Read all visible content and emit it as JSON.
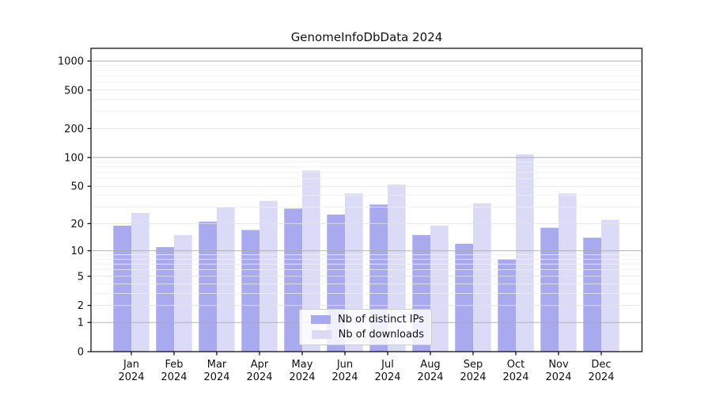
{
  "chart_data": {
    "type": "bar",
    "title": "GenomeInfoDbData 2024",
    "categories": [
      "Jan",
      "Feb",
      "Mar",
      "Apr",
      "May",
      "Jun",
      "Jul",
      "Aug",
      "Sep",
      "Oct",
      "Nov",
      "Dec"
    ],
    "year_label": "2024",
    "series": [
      {
        "name": "Nb of distinct IPs",
        "color": "#a9a9f0",
        "values": [
          19,
          11,
          21,
          17,
          29,
          25,
          32,
          15,
          12,
          8,
          18,
          14
        ]
      },
      {
        "name": "Nb of downloads",
        "color": "#dbdbf8",
        "values": [
          26,
          15,
          30,
          35,
          73,
          42,
          52,
          19,
          33,
          108,
          42,
          22
        ]
      }
    ],
    "yscale": "log1p",
    "ylim": [
      0,
      1350
    ],
    "ytick_labels": [
      0,
      1,
      2,
      5,
      10,
      20,
      50,
      100,
      200,
      500,
      1000
    ],
    "minor_gridlines": [
      3,
      4,
      6,
      7,
      8,
      9,
      30,
      40,
      60,
      70,
      80,
      90,
      300,
      400,
      600,
      700,
      800,
      900
    ],
    "grid": true,
    "legend_position": "lower center",
    "colors": {
      "major_grid": "#ababab",
      "labeled_grid": "#e2e2e2",
      "minor_grid": "#f0f0f0",
      "spine": "#000000",
      "text": "#111111"
    }
  }
}
